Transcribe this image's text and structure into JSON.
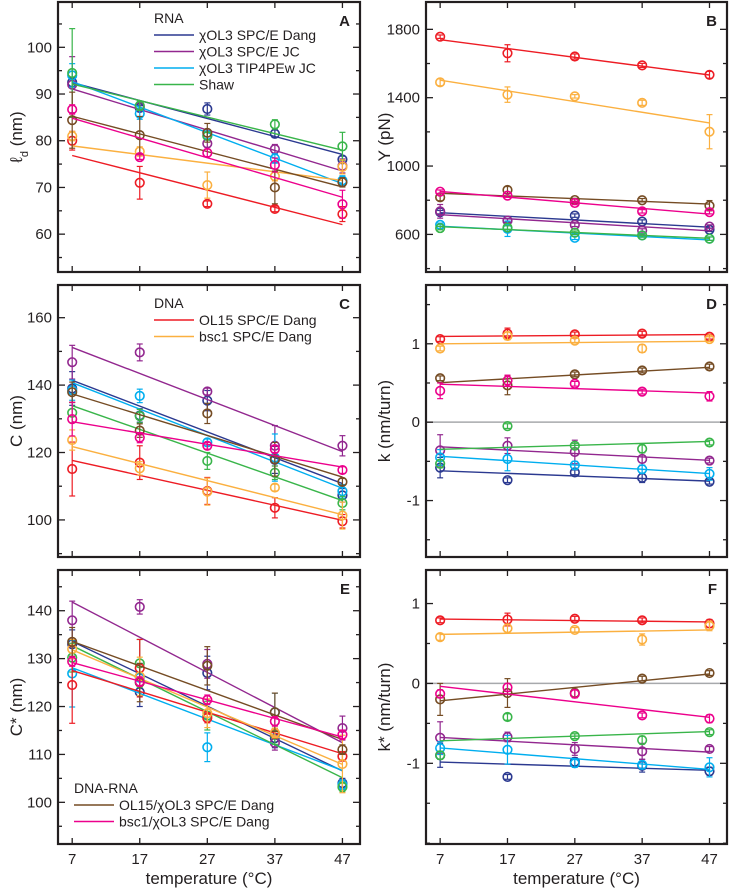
{
  "chart_data": [
    {
      "panel": "A",
      "type": "scatter",
      "ylabel": "ℓ",
      "ylabel_sub": "d",
      "ylabel_unit": " (nm)",
      "xlim": [
        4.9,
        49.6
      ],
      "ylim": [
        51.9,
        109.7
      ],
      "yticks": [
        60,
        70,
        80,
        90,
        100
      ],
      "yminor": 5,
      "legend": {
        "title": "RNA",
        "entries": [
          0,
          1,
          2,
          3
        ],
        "placement": "top-center"
      },
      "x": [
        7,
        17,
        27,
        37,
        47
      ],
      "series": [
        {
          "name": "χOL3 SPC/E Dang",
          "color": "#2b3990",
          "values": [
            92.5,
            87,
            86.8,
            81.5,
            76
          ],
          "err": [
            1,
            0.5,
            1.3,
            0.8,
            0.7
          ]
        },
        {
          "name": "χOL3 SPC/E JC",
          "color": "#92278f",
          "values": [
            92,
            87.3,
            79.4,
            78.2,
            74.6
          ],
          "err": [
            6,
            0.8,
            0.8,
            1,
            1.5
          ]
        },
        {
          "name": "χOL3 TIP4PEw JC",
          "color": "#00aeef",
          "values": [
            94,
            85.8,
            81.2,
            76.2,
            71.5
          ],
          "err": [
            2.5,
            1.2,
            0.8,
            1,
            1
          ]
        },
        {
          "name": "Shaw",
          "color": "#39b54a",
          "values": [
            94.5,
            87.5,
            81,
            83.5,
            78.8
          ],
          "err": [
            9.5,
            1,
            0.8,
            1,
            3
          ]
        },
        {
          "name": "OL15 SPC/E Dang",
          "color": "#ed1c24",
          "values": [
            80,
            71,
            66.5,
            65.4,
            64.3
          ],
          "err": [
            2,
            3.5,
            0.6,
            0.6,
            1.6
          ]
        },
        {
          "name": "bsc1 SPC/E Dang",
          "color": "#fbb040",
          "values": [
            81,
            77.7,
            70.5,
            72.4,
            74.4
          ],
          "err": [
            1,
            1,
            2.8,
            1,
            1.5
          ]
        },
        {
          "name": "OL15/χOL3 SPC/E Dang",
          "color": "#754c24",
          "values": [
            84.4,
            81.2,
            81.7,
            70,
            71.1
          ],
          "err": [
            6,
            4,
            2,
            3.5,
            1
          ]
        },
        {
          "name": "bsc1/χOL3 SPC/E Dang",
          "color": "#ec008c",
          "values": [
            86.7,
            76.5,
            77.4,
            74.8,
            66.4
          ],
          "err": [
            1,
            0.5,
            0.8,
            1.5,
            3
          ]
        }
      ]
    },
    {
      "panel": "B",
      "type": "scatter",
      "ylabel": "Y (pN)",
      "xlim": [
        4.9,
        49.6
      ],
      "ylim": [
        380,
        1960
      ],
      "yticks": [
        600,
        1000,
        1400,
        1800
      ],
      "yminor": 200,
      "x": [
        7,
        17,
        27,
        37,
        47
      ],
      "series": [
        {
          "name": "χOL3 SPC/E Dang",
          "color": "#2b3990",
          "values": [
            730,
            681,
            710,
            675,
            627
          ],
          "err": [
            10,
            10,
            10,
            10,
            10
          ]
        },
        {
          "name": "χOL3 SPC/E JC",
          "color": "#92278f",
          "values": [
            735,
            681,
            656,
            623,
            646
          ],
          "err": [
            40,
            10,
            10,
            10,
            10
          ]
        },
        {
          "name": "χOL3 TIP4PEw JC",
          "color": "#00aeef",
          "values": [
            656,
            633,
            580,
            594,
            575
          ],
          "err": [
            10,
            45,
            10,
            10,
            10
          ]
        },
        {
          "name": "Shaw",
          "color": "#39b54a",
          "values": [
            637,
            640,
            610,
            594,
            575
          ],
          "err": [
            10,
            10,
            10,
            10,
            10
          ]
        },
        {
          "name": "OL15 SPC/E Dang",
          "color": "#ed1c24",
          "values": [
            1757,
            1660,
            1641,
            1589,
            1534
          ],
          "err": [
            10,
            50,
            15,
            12,
            20
          ]
        },
        {
          "name": "bsc1 SPC/E Dang",
          "color": "#fbb040",
          "values": [
            1490,
            1418,
            1408,
            1370,
            1201
          ],
          "err": [
            20,
            45,
            10,
            15,
            100
          ]
        },
        {
          "name": "OL15/χOL3 SPC/E Dang",
          "color": "#754c24",
          "values": [
            817,
            860,
            801,
            800,
            768
          ],
          "err": [
            20,
            20,
            10,
            10,
            30
          ]
        },
        {
          "name": "bsc1/χOL3 SPC/E Dang",
          "color": "#ec008c",
          "values": [
            850,
            827,
            784,
            735,
            730
          ],
          "err": [
            10,
            10,
            10,
            10,
            10
          ]
        }
      ]
    },
    {
      "panel": "C",
      "type": "scatter",
      "ylabel": "C (nm)",
      "xlim": [
        4.9,
        49.6
      ],
      "ylim": [
        89,
        169.7
      ],
      "yticks": [
        100,
        120,
        140,
        160
      ],
      "yminor": 10,
      "legend": {
        "title": "DNA",
        "entries": [
          4,
          5
        ],
        "placement": "top-center"
      },
      "x": [
        7,
        17,
        27,
        37,
        47
      ],
      "series": [
        {
          "name": "χOL3 SPC/E Dang",
          "color": "#2b3990",
          "values": [
            139,
            131,
            135.4,
            117.8,
            107.3
          ],
          "err": [
            5,
            2,
            3,
            4,
            2
          ]
        },
        {
          "name": "χOL3 SPC/E JC",
          "color": "#92278f",
          "values": [
            146.8,
            149.7,
            138.1,
            122,
            122
          ],
          "err": [
            5,
            2.5,
            1,
            6,
            3
          ]
        },
        {
          "name": "χOL3 TIP4PEw JC",
          "color": "#00aeef",
          "values": [
            138.5,
            136.8,
            123,
            118.5,
            108.5
          ],
          "err": [
            3,
            2,
            1,
            7,
            2
          ]
        },
        {
          "name": "Shaw",
          "color": "#39b54a",
          "values": [
            131.8,
            130.8,
            117.5,
            114,
            105
          ],
          "err": [
            3,
            2,
            2.5,
            2,
            2
          ]
        },
        {
          "name": "OL15 SPC/E Dang",
          "color": "#ed1c24",
          "values": [
            115.1,
            117,
            108.6,
            103.6,
            99.6
          ],
          "err": [
            8,
            5,
            4,
            3,
            2
          ]
        },
        {
          "name": "bsc1 SPC/E Dang",
          "color": "#fbb040",
          "values": [
            123.7,
            115.3,
            108.4,
            109.6,
            101.3
          ],
          "err": [
            3,
            2,
            4,
            1,
            4
          ]
        },
        {
          "name": "OL15/χOL3 SPC/E Dang",
          "color": "#754c24",
          "values": [
            137.9,
            126.5,
            131.6,
            118,
            111.3
          ],
          "err": [
            3,
            2,
            3,
            5,
            1
          ]
        },
        {
          "name": "bsc1/χOL3 SPC/E Dang",
          "color": "#ec008c",
          "values": [
            129.9,
            124.4,
            122,
            121,
            114.8
          ],
          "err": [
            5,
            1.5,
            1,
            1,
            1
          ]
        }
      ]
    },
    {
      "panel": "D",
      "type": "scatter",
      "ylabel": "k (nm/turn)",
      "xlim": [
        4.9,
        49.6
      ],
      "ylim": [
        -1.72,
        1.75
      ],
      "yticks": [
        -1,
        0,
        1
      ],
      "yminor": 0.5,
      "reference_line": 0,
      "x": [
        7,
        17,
        27,
        37,
        47
      ],
      "series": [
        {
          "name": "χOL3 SPC/E Dang",
          "color": "#2b3990",
          "values": [
            -0.58,
            -0.74,
            -0.64,
            -0.71,
            -0.76
          ],
          "err": [
            0.13,
            0.03,
            0.03,
            0.06,
            0.03
          ]
        },
        {
          "name": "χOL3 SPC/E JC",
          "color": "#92278f",
          "values": [
            -0.36,
            -0.3,
            -0.38,
            -0.47,
            -0.49
          ],
          "err": [
            0.2,
            0.1,
            0.15,
            0.08,
            0.03
          ]
        },
        {
          "name": "χOL3 TIP4PEw JC",
          "color": "#00aeef",
          "values": [
            -0.45,
            -0.47,
            -0.55,
            -0.6,
            -0.66
          ],
          "err": [
            0.1,
            0.15,
            0.05,
            0.05,
            0.08
          ]
        },
        {
          "name": "Shaw",
          "color": "#39b54a",
          "values": [
            -0.53,
            -0.05,
            -0.3,
            -0.34,
            -0.26
          ],
          "err": [
            0.05,
            0.03,
            0.03,
            0.05,
            0.03
          ]
        },
        {
          "name": "OL15 SPC/E Dang",
          "color": "#ed1c24",
          "values": [
            1.06,
            1.13,
            1.12,
            1.13,
            1.09
          ],
          "err": [
            0.03,
            0.07,
            0.03,
            0.03,
            0.03
          ]
        },
        {
          "name": "bsc1 SPC/E Dang",
          "color": "#fbb040",
          "values": [
            0.94,
            1.1,
            1.04,
            0.94,
            1.06
          ],
          "err": [
            0.03,
            0.05,
            0.03,
            0.05,
            0.03
          ]
        },
        {
          "name": "OL15/χOL3 SPC/E Dang",
          "color": "#754c24",
          "values": [
            0.56,
            0.47,
            0.61,
            0.66,
            0.71
          ],
          "err": [
            0.03,
            0.12,
            0.03,
            0.03,
            0.03
          ]
        },
        {
          "name": "bsc1/χOL3 SPC/E Dang",
          "color": "#ec008c",
          "values": [
            0.4,
            0.53,
            0.49,
            0.39,
            0.33
          ],
          "err": [
            0.1,
            0.07,
            0.03,
            0.03,
            0.06
          ]
        }
      ]
    },
    {
      "panel": "E",
      "type": "scatter",
      "ylabel": "C* (nm)",
      "xlabel": "temperature (°C)",
      "xlim": [
        4.9,
        49.6
      ],
      "ylim": [
        91.3,
        148.5
      ],
      "yticks": [
        100,
        110,
        120,
        130,
        140
      ],
      "yminor": 5,
      "xticks": [
        7,
        17,
        27,
        37,
        47
      ],
      "legend": {
        "title": "DNA-RNA",
        "entries": [
          6,
          7
        ],
        "placement": "bottom-left"
      },
      "x": [
        7,
        17,
        27,
        37,
        47
      ],
      "series": [
        {
          "name": "χOL3 SPC/E Dang",
          "color": "#2b3990",
          "values": [
            133,
            123,
            127,
            113.4,
            104
          ],
          "err": [
            3,
            3,
            3.5,
            2,
            1
          ]
        },
        {
          "name": "χOL3 SPC/E JC",
          "color": "#92278f",
          "values": [
            138,
            140.8,
            128.9,
            112.4,
            115.5
          ],
          "err": [
            4,
            1.5,
            3,
            1.5,
            2.5
          ]
        },
        {
          "name": "χOL3 TIP4PEw JC",
          "color": "#00aeef",
          "values": [
            126.9,
            126,
            111.5,
            118.8,
            103.7
          ],
          "err": [
            7,
            3,
            3,
            4,
            1
          ]
        },
        {
          "name": "Shaw",
          "color": "#39b54a",
          "values": [
            130.2,
            129,
            118.1,
            114.1,
            103.2
          ],
          "err": [
            3,
            5,
            3,
            2,
            1
          ]
        },
        {
          "name": "OL15 SPC/E Dang",
          "color": "#ed1c24",
          "values": [
            124.5,
            128,
            117.6,
            114.4,
            109.6
          ],
          "err": [
            8,
            6,
            1,
            1,
            1
          ]
        },
        {
          "name": "bsc1 SPC/E Dang",
          "color": "#fbb040",
          "values": [
            132,
            126.3,
            118.6,
            114.5,
            108
          ],
          "err": [
            2,
            4,
            3,
            1,
            6
          ]
        },
        {
          "name": "OL15/χOL3 SPC/E Dang",
          "color": "#754c24",
          "values": [
            133.5,
            125,
            128.5,
            118.8,
            111
          ],
          "err": [
            3,
            4,
            4,
            4,
            1
          ]
        },
        {
          "name": "bsc1/χOL3 SPC/E Dang",
          "color": "#ec008c",
          "values": [
            129.4,
            125.2,
            121.4,
            116.9,
            114.1
          ],
          "err": [
            1,
            1,
            1,
            1,
            1
          ]
        }
      ]
    },
    {
      "panel": "F",
      "type": "scatter",
      "ylabel": "k* (nm/turn)",
      "xlabel": "temperature (°C)",
      "xlim": [
        4.9,
        49.6
      ],
      "ylim": [
        -2.01,
        1.42
      ],
      "yticks": [
        -1,
        0,
        1
      ],
      "yminor": 0.5,
      "reference_line": 0,
      "xticks": [
        7,
        17,
        27,
        37,
        47
      ],
      "x": [
        7,
        17,
        27,
        37,
        47
      ],
      "series": [
        {
          "name": "χOL3 SPC/E Dang",
          "color": "#2b3990",
          "values": [
            -0.9,
            -1.17,
            -0.98,
            -1.03,
            -1.1
          ],
          "err": [
            0.15,
            0.03,
            0.05,
            0.08,
            0.05
          ]
        },
        {
          "name": "χOL3 SPC/E JC",
          "color": "#92278f",
          "values": [
            -0.68,
            -0.67,
            -0.82,
            -0.85,
            -0.82
          ],
          "err": [
            0.2,
            0.06,
            0.08,
            0.1,
            0.03
          ]
        },
        {
          "name": "χOL3 TIP4PEw JC",
          "color": "#00aeef",
          "values": [
            -0.81,
            -0.83,
            -1.0,
            -1.02,
            -1.05
          ],
          "err": [
            0.08,
            0.18,
            0.05,
            0.05,
            0.12
          ]
        },
        {
          "name": "Shaw",
          "color": "#39b54a",
          "values": [
            -0.9,
            -0.42,
            -0.66,
            -0.71,
            -0.61
          ],
          "err": [
            0.05,
            0.04,
            0.03,
            0.05,
            0.03
          ]
        },
        {
          "name": "OL15 SPC/E Dang",
          "color": "#ed1c24",
          "values": [
            0.79,
            0.8,
            0.81,
            0.79,
            0.75
          ],
          "err": [
            0.03,
            0.08,
            0.03,
            0.03,
            0.05
          ]
        },
        {
          "name": "bsc1 SPC/E Dang",
          "color": "#fbb040",
          "values": [
            0.58,
            0.69,
            0.67,
            0.55,
            0.72
          ],
          "err": [
            0.04,
            0.05,
            0.03,
            0.07,
            0.06
          ]
        },
        {
          "name": "OL15/χOL3 SPC/E Dang",
          "color": "#754c24",
          "values": [
            -0.2,
            -0.12,
            -0.12,
            0.06,
            0.13
          ],
          "err": [
            0.2,
            0.18,
            0.05,
            0.03,
            0.03
          ]
        },
        {
          "name": "bsc1/χOL3 SPC/E Dang",
          "color": "#ec008c",
          "values": [
            -0.13,
            -0.05,
            -0.13,
            -0.4,
            -0.44
          ],
          "err": [
            0.05,
            0.05,
            0.05,
            0.03,
            0.05
          ]
        }
      ]
    }
  ],
  "colors": {
    "axis": "#231f20",
    "reference_line": "#a7a9ac"
  }
}
